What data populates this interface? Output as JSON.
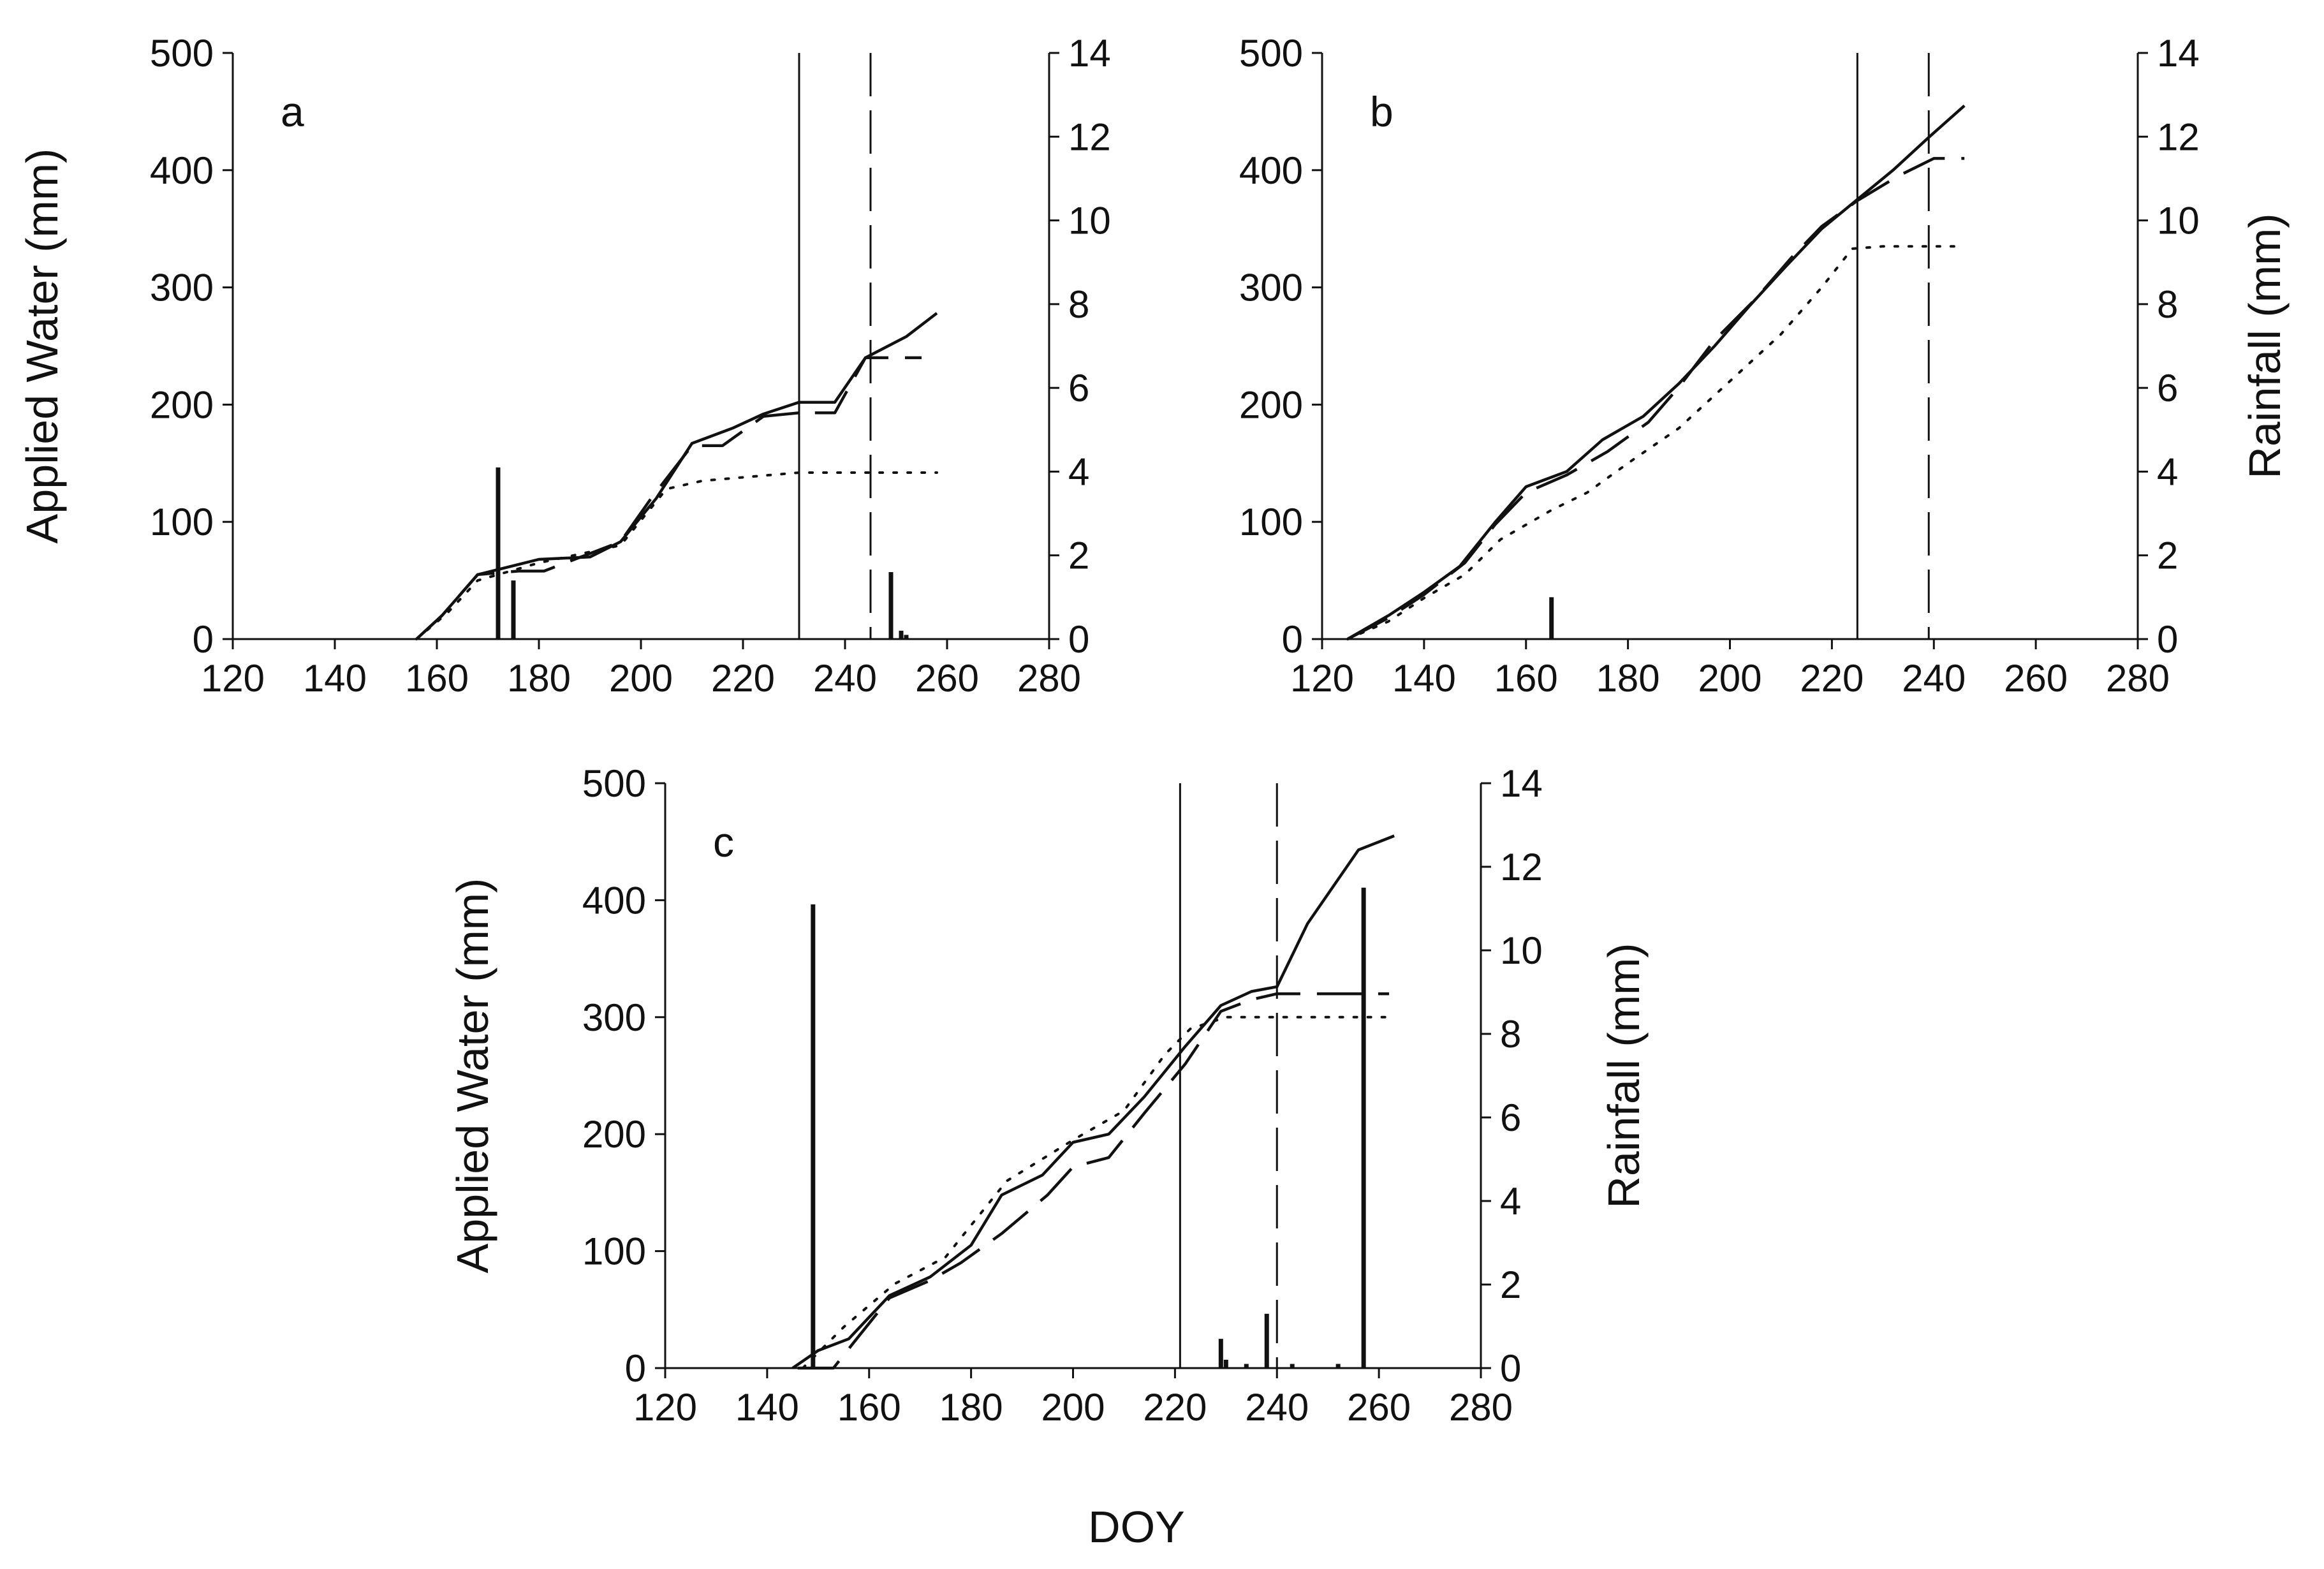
{
  "figure": {
    "xlabel": "DOY",
    "ylabel_left": "Applied Water (mm)",
    "ylabel_right": "Rainfall (mm)",
    "ink_color": "#111111",
    "background": "#ffffff"
  },
  "chart_data": [
    {
      "panel": "a",
      "type": "line",
      "xlim": [
        120,
        280
      ],
      "ylim_left": [
        0,
        500
      ],
      "ylim_right": [
        0,
        14
      ],
      "x_ticks": [
        120,
        140,
        160,
        180,
        200,
        220,
        240,
        260,
        280
      ],
      "y_ticks_left": [
        0,
        100,
        200,
        300,
        400,
        500
      ],
      "y_ticks_right": [
        0,
        2,
        4,
        6,
        8,
        10,
        12,
        14
      ],
      "show_left_title": true,
      "show_right_title": false,
      "vlines": [
        {
          "x": 231,
          "style": "solid"
        },
        {
          "x": 245,
          "style": "dashed"
        }
      ],
      "rainfall": [
        {
          "x": 172,
          "y": 4.1
        },
        {
          "x": 175,
          "y": 1.4
        },
        {
          "x": 249,
          "y": 1.6
        },
        {
          "x": 251,
          "y": 0.2
        },
        {
          "x": 252,
          "y": 0.1
        }
      ],
      "series": [
        {
          "name": "solid",
          "style": "solid",
          "points": [
            [
              156,
              0
            ],
            [
              161,
              20
            ],
            [
              168,
              55
            ],
            [
              180,
              68
            ],
            [
              190,
              70
            ],
            [
              196,
              83
            ],
            [
              203,
              120
            ],
            [
              210,
              167
            ],
            [
              218,
              180
            ],
            [
              224,
              192
            ],
            [
              231,
              202
            ],
            [
              238,
              202
            ],
            [
              244,
              240
            ],
            [
              252,
              258
            ],
            [
              258,
              278
            ]
          ]
        },
        {
          "name": "dashed",
          "style": "dashed",
          "points": [
            [
              156,
              0
            ],
            [
              161,
              20
            ],
            [
              168,
              55
            ],
            [
              176,
              58
            ],
            [
              181,
              58
            ],
            [
              190,
              73
            ],
            [
              196,
              83
            ],
            [
              202,
              120
            ],
            [
              210,
              165
            ],
            [
              216,
              165
            ],
            [
              224,
              190
            ],
            [
              231,
              193
            ],
            [
              238,
              193
            ],
            [
              244,
              240
            ],
            [
              255,
              240
            ]
          ]
        },
        {
          "name": "dotted",
          "style": "dotted",
          "points": [
            [
              156,
              0
            ],
            [
              162,
              22
            ],
            [
              168,
              50
            ],
            [
              180,
              65
            ],
            [
              196,
              80
            ],
            [
              205,
              128
            ],
            [
              212,
              135
            ],
            [
              220,
              138
            ],
            [
              231,
              142
            ],
            [
              258,
              142
            ]
          ]
        }
      ]
    },
    {
      "panel": "b",
      "type": "line",
      "xlim": [
        120,
        280
      ],
      "ylim_left": [
        0,
        500
      ],
      "ylim_right": [
        0,
        14
      ],
      "x_ticks": [
        120,
        140,
        160,
        180,
        200,
        220,
        240,
        260,
        280
      ],
      "y_ticks_left": [
        0,
        100,
        200,
        300,
        400,
        500
      ],
      "y_ticks_right": [
        0,
        2,
        4,
        6,
        8,
        10,
        12,
        14
      ],
      "show_left_title": false,
      "show_right_title": true,
      "vlines": [
        {
          "x": 225,
          "style": "solid"
        },
        {
          "x": 239,
          "style": "dashed"
        }
      ],
      "rainfall": [
        {
          "x": 165,
          "y": 1.0
        }
      ],
      "series": [
        {
          "name": "solid",
          "style": "solid",
          "points": [
            [
              125,
              0
            ],
            [
              133,
              20
            ],
            [
              140,
              40
            ],
            [
              147,
              62
            ],
            [
              154,
              100
            ],
            [
              160,
              130
            ],
            [
              168,
              143
            ],
            [
              175,
              170
            ],
            [
              183,
              190
            ],
            [
              190,
              218
            ],
            [
              197,
              250
            ],
            [
              204,
              285
            ],
            [
              211,
              318
            ],
            [
              218,
              350
            ],
            [
              225,
              375
            ],
            [
              232,
              400
            ],
            [
              239,
              428
            ],
            [
              246,
              455
            ]
          ]
        },
        {
          "name": "dashed",
          "style": "dashed",
          "points": [
            [
              125,
              0
            ],
            [
              133,
              18
            ],
            [
              140,
              38
            ],
            [
              148,
              65
            ],
            [
              154,
              98
            ],
            [
              160,
              125
            ],
            [
              168,
              140
            ],
            [
              176,
              160
            ],
            [
              184,
              185
            ],
            [
              190,
              215
            ],
            [
              197,
              255
            ],
            [
              205,
              290
            ],
            [
              212,
              325
            ],
            [
              218,
              352
            ],
            [
              225,
              374
            ],
            [
              233,
              395
            ],
            [
              240,
              410
            ],
            [
              246,
              410
            ]
          ]
        },
        {
          "name": "dotted",
          "style": "dotted",
          "points": [
            [
              125,
              0
            ],
            [
              133,
              15
            ],
            [
              140,
              35
            ],
            [
              148,
              55
            ],
            [
              155,
              85
            ],
            [
              165,
              110
            ],
            [
              172,
              125
            ],
            [
              180,
              150
            ],
            [
              190,
              180
            ],
            [
              200,
              220
            ],
            [
              210,
              260
            ],
            [
              218,
              300
            ],
            [
              224,
              333
            ],
            [
              230,
              335
            ],
            [
              246,
              335
            ]
          ]
        }
      ]
    },
    {
      "panel": "c",
      "type": "line",
      "xlim": [
        120,
        280
      ],
      "ylim_left": [
        0,
        500
      ],
      "ylim_right": [
        0,
        14
      ],
      "x_ticks": [
        120,
        140,
        160,
        180,
        200,
        220,
        240,
        260,
        280
      ],
      "y_ticks_left": [
        0,
        100,
        200,
        300,
        400,
        500
      ],
      "y_ticks_right": [
        0,
        2,
        4,
        6,
        8,
        10,
        12,
        14
      ],
      "show_left_title": true,
      "show_right_title": true,
      "vlines": [
        {
          "x": 221,
          "style": "solid"
        },
        {
          "x": 240,
          "style": "dashed"
        }
      ],
      "rainfall": [
        {
          "x": 149,
          "y": 11.1
        },
        {
          "x": 229,
          "y": 0.7
        },
        {
          "x": 230,
          "y": 0.2
        },
        {
          "x": 234,
          "y": 0.1
        },
        {
          "x": 238,
          "y": 1.3
        },
        {
          "x": 243,
          "y": 0.1
        },
        {
          "x": 252,
          "y": 0.1
        },
        {
          "x": 257,
          "y": 11.5
        }
      ],
      "series": [
        {
          "name": "solid",
          "style": "solid",
          "points": [
            [
              145,
              0
            ],
            [
              150,
              15
            ],
            [
              156,
              25
            ],
            [
              164,
              62
            ],
            [
              172,
              78
            ],
            [
              180,
              105
            ],
            [
              186,
              148
            ],
            [
              194,
              165
            ],
            [
              200,
              193
            ],
            [
              207,
              200
            ],
            [
              214,
              232
            ],
            [
              222,
              275
            ],
            [
              229,
              310
            ],
            [
              235,
              322
            ],
            [
              240,
              326
            ],
            [
              246,
              380
            ],
            [
              256,
              443
            ],
            [
              263,
              455
            ]
          ]
        },
        {
          "name": "dashed",
          "style": "dashed",
          "points": [
            [
              146,
              0
            ],
            [
              153,
              0
            ],
            [
              157,
              22
            ],
            [
              164,
              60
            ],
            [
              172,
              75
            ],
            [
              178,
              90
            ],
            [
              186,
              115
            ],
            [
              195,
              148
            ],
            [
              200,
              172
            ],
            [
              207,
              180
            ],
            [
              214,
              218
            ],
            [
              222,
              260
            ],
            [
              229,
              305
            ],
            [
              235,
              315
            ],
            [
              240,
              320
            ],
            [
              262,
              320
            ]
          ]
        },
        {
          "name": "dotted",
          "style": "dotted",
          "points": [
            [
              147,
              0
            ],
            [
              155,
              35
            ],
            [
              165,
              72
            ],
            [
              175,
              95
            ],
            [
              187,
              160
            ],
            [
              200,
              195
            ],
            [
              210,
              220
            ],
            [
              218,
              268
            ],
            [
              223,
              290
            ],
            [
              230,
              300
            ],
            [
              262,
              300
            ]
          ]
        }
      ]
    }
  ]
}
